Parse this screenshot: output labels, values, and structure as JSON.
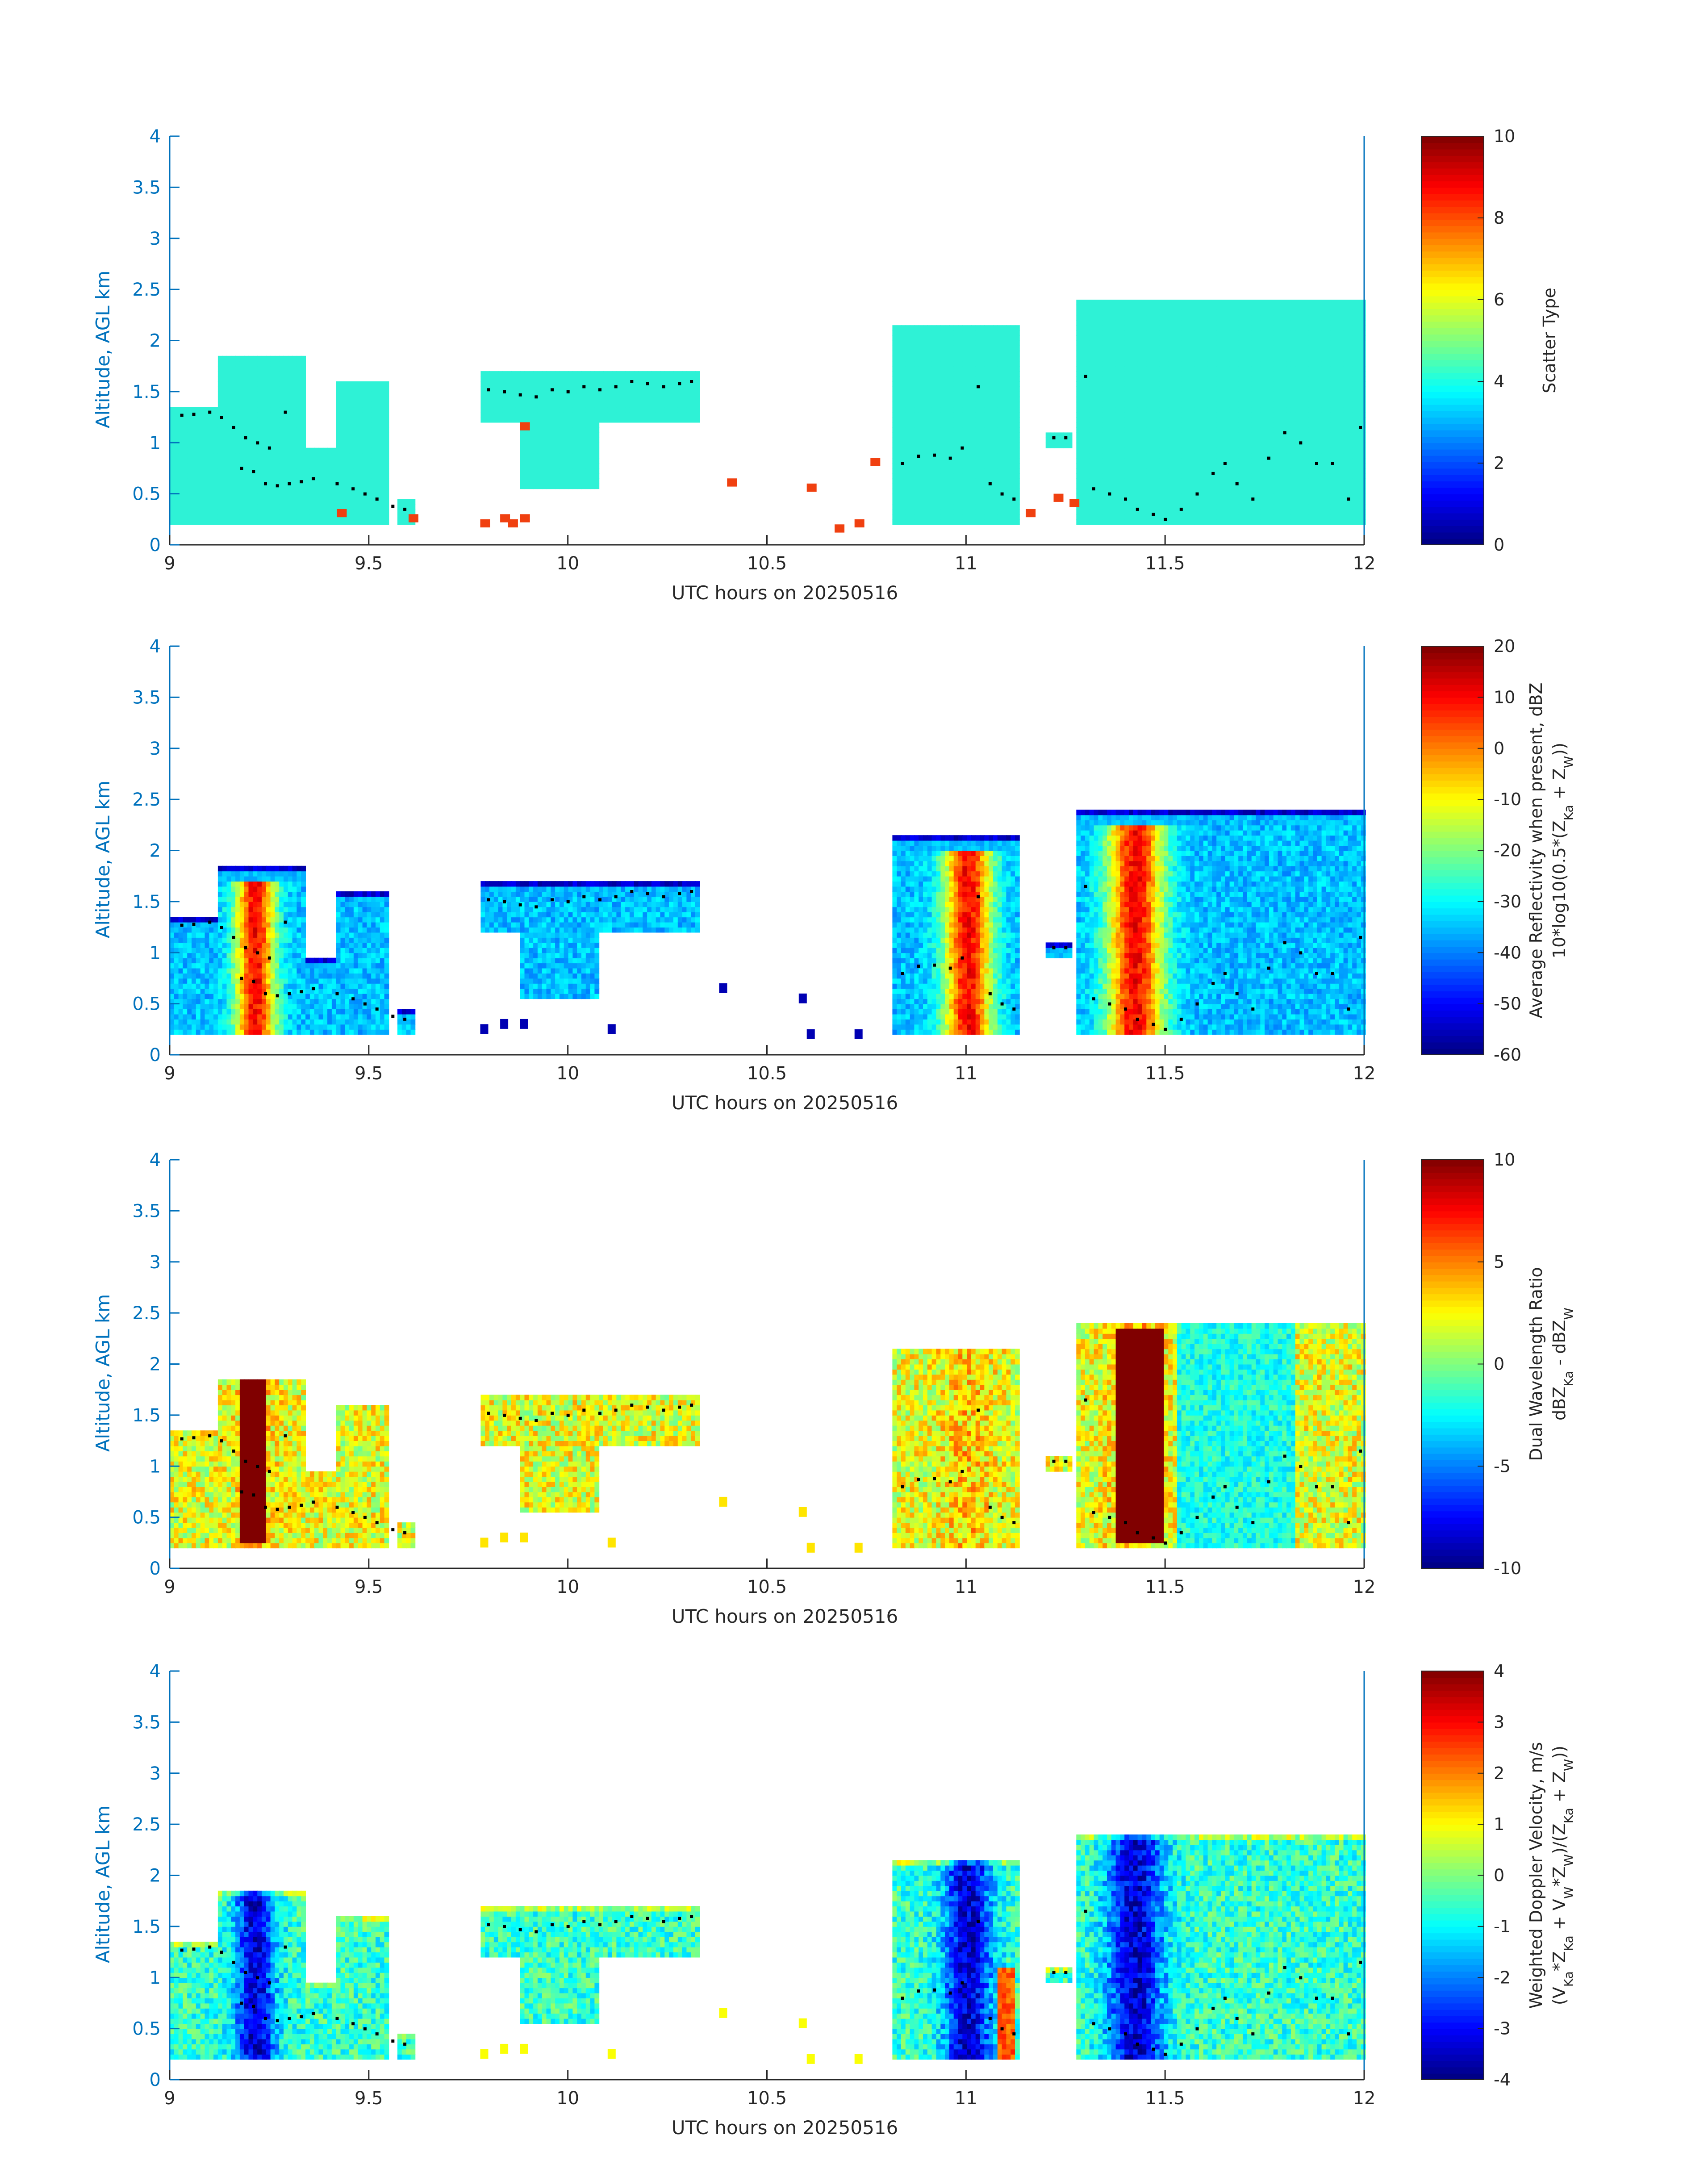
{
  "figure": {
    "colors": {
      "axis": "#0072BD",
      "text": "#262626",
      "tick": "#262626",
      "scatter_cyan": "#2EF2D6",
      "scatter_red": "#F04010"
    }
  },
  "chart_data": [
    {
      "type": "heatmap",
      "name": "scatter-type",
      "xlabel": "UTC hours on 20250516",
      "ylabel": "Altitude, AGL km",
      "xlim": [
        9,
        12
      ],
      "ylim": [
        0,
        4
      ],
      "xticks": [
        "9",
        "9.5",
        "10",
        "10.5",
        "11",
        "11.5",
        "12"
      ],
      "yticks": [
        "0",
        "0.5",
        "1",
        "1.5",
        "2",
        "2.5",
        "3",
        "3.5",
        "4"
      ],
      "colorbar": {
        "label_lines": [
          "Scatter Type"
        ],
        "range": [
          0,
          10
        ],
        "ticks": [
          "0",
          "2",
          "4",
          "6",
          "8",
          "10"
        ]
      },
      "colormap": "jet",
      "mode": "scatter",
      "regions": [
        {
          "x": [
            9.0,
            9.12
          ],
          "top": 1.35,
          "bottom": 0.2,
          "value": 4
        },
        {
          "x": [
            9.12,
            9.34
          ],
          "top": 1.85,
          "bottom": 0.2,
          "value": 4
        },
        {
          "x": [
            9.34,
            9.42
          ],
          "top": 0.95,
          "bottom": 0.2,
          "value": 4
        },
        {
          "x": [
            9.42,
            9.55
          ],
          "top": 1.6,
          "bottom": 0.2,
          "value": 4
        },
        {
          "x": [
            9.57,
            9.62
          ],
          "top": 0.45,
          "bottom": 0.2,
          "value": 4
        },
        {
          "x": [
            9.78,
            10.33
          ],
          "top": 1.65,
          "bottom": 1.2,
          "value": 4
        },
        {
          "x": [
            9.88,
            10.08
          ],
          "top": 1.3,
          "bottom": 0.6,
          "value": 4
        },
        {
          "x": [
            10.82,
            11.13
          ],
          "top": 2.1,
          "bottom": 0.2,
          "value": 4
        },
        {
          "x": [
            11.2,
            11.27
          ],
          "top": 1.1,
          "bottom": 0.95,
          "value": 4
        },
        {
          "x": [
            11.28,
            12.0
          ],
          "top": 2.3,
          "bottom": 0.2,
          "value": 4
        }
      ],
      "red_patches": [
        [
          9.42,
          0.35
        ],
        [
          9.6,
          0.3
        ],
        [
          9.78,
          0.25
        ],
        [
          9.83,
          0.3
        ],
        [
          9.85,
          0.25
        ],
        [
          9.88,
          0.3
        ],
        [
          10.4,
          0.65
        ],
        [
          10.6,
          0.6
        ],
        [
          10.67,
          0.2
        ],
        [
          10.72,
          0.25
        ],
        [
          10.76,
          0.85
        ],
        [
          11.15,
          0.35
        ],
        [
          11.22,
          0.5
        ],
        [
          11.26,
          0.45
        ],
        [
          9.88,
          1.2
        ]
      ]
    },
    {
      "type": "heatmap",
      "name": "reflectivity",
      "xlabel": "UTC hours on 20250516",
      "ylabel": "Altitude, AGL km",
      "xlim": [
        9,
        12
      ],
      "ylim": [
        0,
        4
      ],
      "xticks": [
        "9",
        "9.5",
        "10",
        "10.5",
        "11",
        "11.5",
        "12"
      ],
      "yticks": [
        "0",
        "0.5",
        "1",
        "1.5",
        "2",
        "2.5",
        "3",
        "3.5",
        "4"
      ],
      "colorbar": {
        "label_lines": [
          "Average Reflectivity when present, dBZ",
          "10*log10(0.5*(Z",
          "Ka",
          " + Z",
          "W",
          "))"
        ],
        "range": [
          -60,
          20
        ],
        "ticks": [
          "-60",
          "-50",
          "-40",
          "-30",
          "-20",
          "-10",
          "0",
          "10",
          "20"
        ]
      },
      "colormap": "jet",
      "mode": "reflectivity"
    },
    {
      "type": "heatmap",
      "name": "dual-wavelength-ratio",
      "xlabel": "UTC hours on 20250516",
      "ylabel": "Altitude, AGL km",
      "xlim": [
        9,
        12
      ],
      "ylim": [
        0,
        4
      ],
      "xticks": [
        "9",
        "9.5",
        "10",
        "10.5",
        "11",
        "11.5",
        "12"
      ],
      "yticks": [
        "0",
        "0.5",
        "1",
        "1.5",
        "2",
        "2.5",
        "3",
        "3.5",
        "4"
      ],
      "colorbar": {
        "label_lines": [
          "Dual Wavelength Ratio",
          "dBZ",
          "Ka",
          " - dBZ",
          "W"
        ],
        "range": [
          -10,
          10
        ],
        "ticks": [
          "-10",
          "-5",
          "0",
          "5",
          "10"
        ]
      },
      "colormap": "jet",
      "mode": "dwr"
    },
    {
      "type": "heatmap",
      "name": "doppler-velocity",
      "xlabel": "UTC hours on 20250516",
      "ylabel": "Altitude, AGL km",
      "xlim": [
        9,
        12
      ],
      "ylim": [
        0,
        4
      ],
      "xticks": [
        "9",
        "9.5",
        "10",
        "10.5",
        "11",
        "11.5",
        "12"
      ],
      "yticks": [
        "0",
        "0.5",
        "1",
        "1.5",
        "2",
        "2.5",
        "3",
        "3.5",
        "4"
      ],
      "colorbar": {
        "label_lines": [
          "Weighted Doppler Velocity, m/s",
          "(V",
          "Ka",
          "*Z",
          "Ka",
          " + V",
          "W",
          "*Z",
          "W",
          ")/(Z",
          "Ka",
          " + Z",
          "W",
          "))"
        ],
        "range": [
          -4,
          4
        ],
        "ticks": [
          "-4",
          "-3",
          "-2",
          "-1",
          "0",
          "1",
          "2",
          "3",
          "4"
        ]
      },
      "colormap": "jet",
      "mode": "velocity"
    }
  ],
  "cloud_structure": {
    "regions": [
      {
        "x": [
          9.0,
          9.12
        ],
        "top": 1.35,
        "bottom": 0.2
      },
      {
        "x": [
          9.12,
          9.34
        ],
        "top": 1.85,
        "bottom": 0.2
      },
      {
        "x": [
          9.34,
          9.42
        ],
        "top": 0.95,
        "bottom": 0.2
      },
      {
        "x": [
          9.42,
          9.55
        ],
        "top": 1.6,
        "bottom": 0.2
      },
      {
        "x": [
          9.57,
          9.62
        ],
        "top": 0.45,
        "bottom": 0.2
      },
      {
        "x": [
          9.78,
          10.33
        ],
        "top": 1.7,
        "bottom": 1.2
      },
      {
        "x": [
          9.88,
          10.08
        ],
        "top": 1.3,
        "bottom": 0.55
      },
      {
        "x": [
          10.82,
          11.13
        ],
        "top": 2.15,
        "bottom": 0.2
      },
      {
        "x": [
          11.2,
          11.27
        ],
        "top": 1.1,
        "bottom": 0.95
      },
      {
        "x": [
          11.28,
          12.0
        ],
        "top": 2.4,
        "bottom": 0.2
      }
    ],
    "cores": [
      {
        "x": 9.21,
        "width": 0.05
      },
      {
        "x": 11.0,
        "width": 0.06
      },
      {
        "x": 11.42,
        "width": 0.07
      }
    ],
    "dwr_hot": [
      {
        "x": [
          9.17,
          9.24
        ],
        "top": 1.9,
        "bottom": 0.25
      },
      {
        "x": [
          11.37,
          11.49
        ],
        "top": 2.3,
        "bottom": 0.25
      }
    ],
    "dots": [
      [
        9.03,
        1.27
      ],
      [
        9.06,
        1.28
      ],
      [
        9.1,
        1.3
      ],
      [
        9.13,
        1.25
      ],
      [
        9.16,
        1.15
      ],
      [
        9.19,
        1.05
      ],
      [
        9.22,
        1.0
      ],
      [
        9.25,
        0.95
      ],
      [
        9.29,
        1.3
      ],
      [
        9.18,
        0.75
      ],
      [
        9.21,
        0.72
      ],
      [
        9.24,
        0.6
      ],
      [
        9.27,
        0.58
      ],
      [
        9.3,
        0.6
      ],
      [
        9.33,
        0.62
      ],
      [
        9.36,
        0.65
      ],
      [
        9.42,
        0.6
      ],
      [
        9.46,
        0.55
      ],
      [
        9.49,
        0.5
      ],
      [
        9.52,
        0.45
      ],
      [
        9.56,
        0.38
      ],
      [
        9.59,
        0.35
      ],
      [
        9.8,
        1.52
      ],
      [
        9.84,
        1.5
      ],
      [
        9.88,
        1.47
      ],
      [
        9.92,
        1.45
      ],
      [
        9.96,
        1.52
      ],
      [
        10.0,
        1.5
      ],
      [
        10.04,
        1.55
      ],
      [
        10.08,
        1.52
      ],
      [
        10.12,
        1.55
      ],
      [
        10.16,
        1.6
      ],
      [
        10.2,
        1.58
      ],
      [
        10.24,
        1.55
      ],
      [
        10.28,
        1.58
      ],
      [
        10.31,
        1.6
      ],
      [
        10.84,
        0.8
      ],
      [
        10.88,
        0.87
      ],
      [
        10.92,
        0.88
      ],
      [
        10.96,
        0.85
      ],
      [
        10.99,
        0.95
      ],
      [
        11.03,
        1.55
      ],
      [
        11.06,
        0.6
      ],
      [
        11.09,
        0.5
      ],
      [
        11.12,
        0.45
      ],
      [
        11.22,
        1.05
      ],
      [
        11.25,
        1.05
      ],
      [
        11.3,
        1.65
      ],
      [
        11.32,
        0.55
      ],
      [
        11.36,
        0.5
      ],
      [
        11.4,
        0.45
      ],
      [
        11.43,
        0.35
      ],
      [
        11.47,
        0.3
      ],
      [
        11.5,
        0.25
      ],
      [
        11.54,
        0.35
      ],
      [
        11.58,
        0.5
      ],
      [
        11.62,
        0.7
      ],
      [
        11.65,
        0.8
      ],
      [
        11.68,
        0.6
      ],
      [
        11.72,
        0.45
      ],
      [
        11.76,
        0.85
      ],
      [
        11.8,
        1.1
      ],
      [
        11.84,
        1.0
      ],
      [
        11.88,
        0.8
      ],
      [
        11.92,
        0.8
      ],
      [
        11.96,
        0.45
      ],
      [
        11.99,
        1.15
      ]
    ]
  }
}
